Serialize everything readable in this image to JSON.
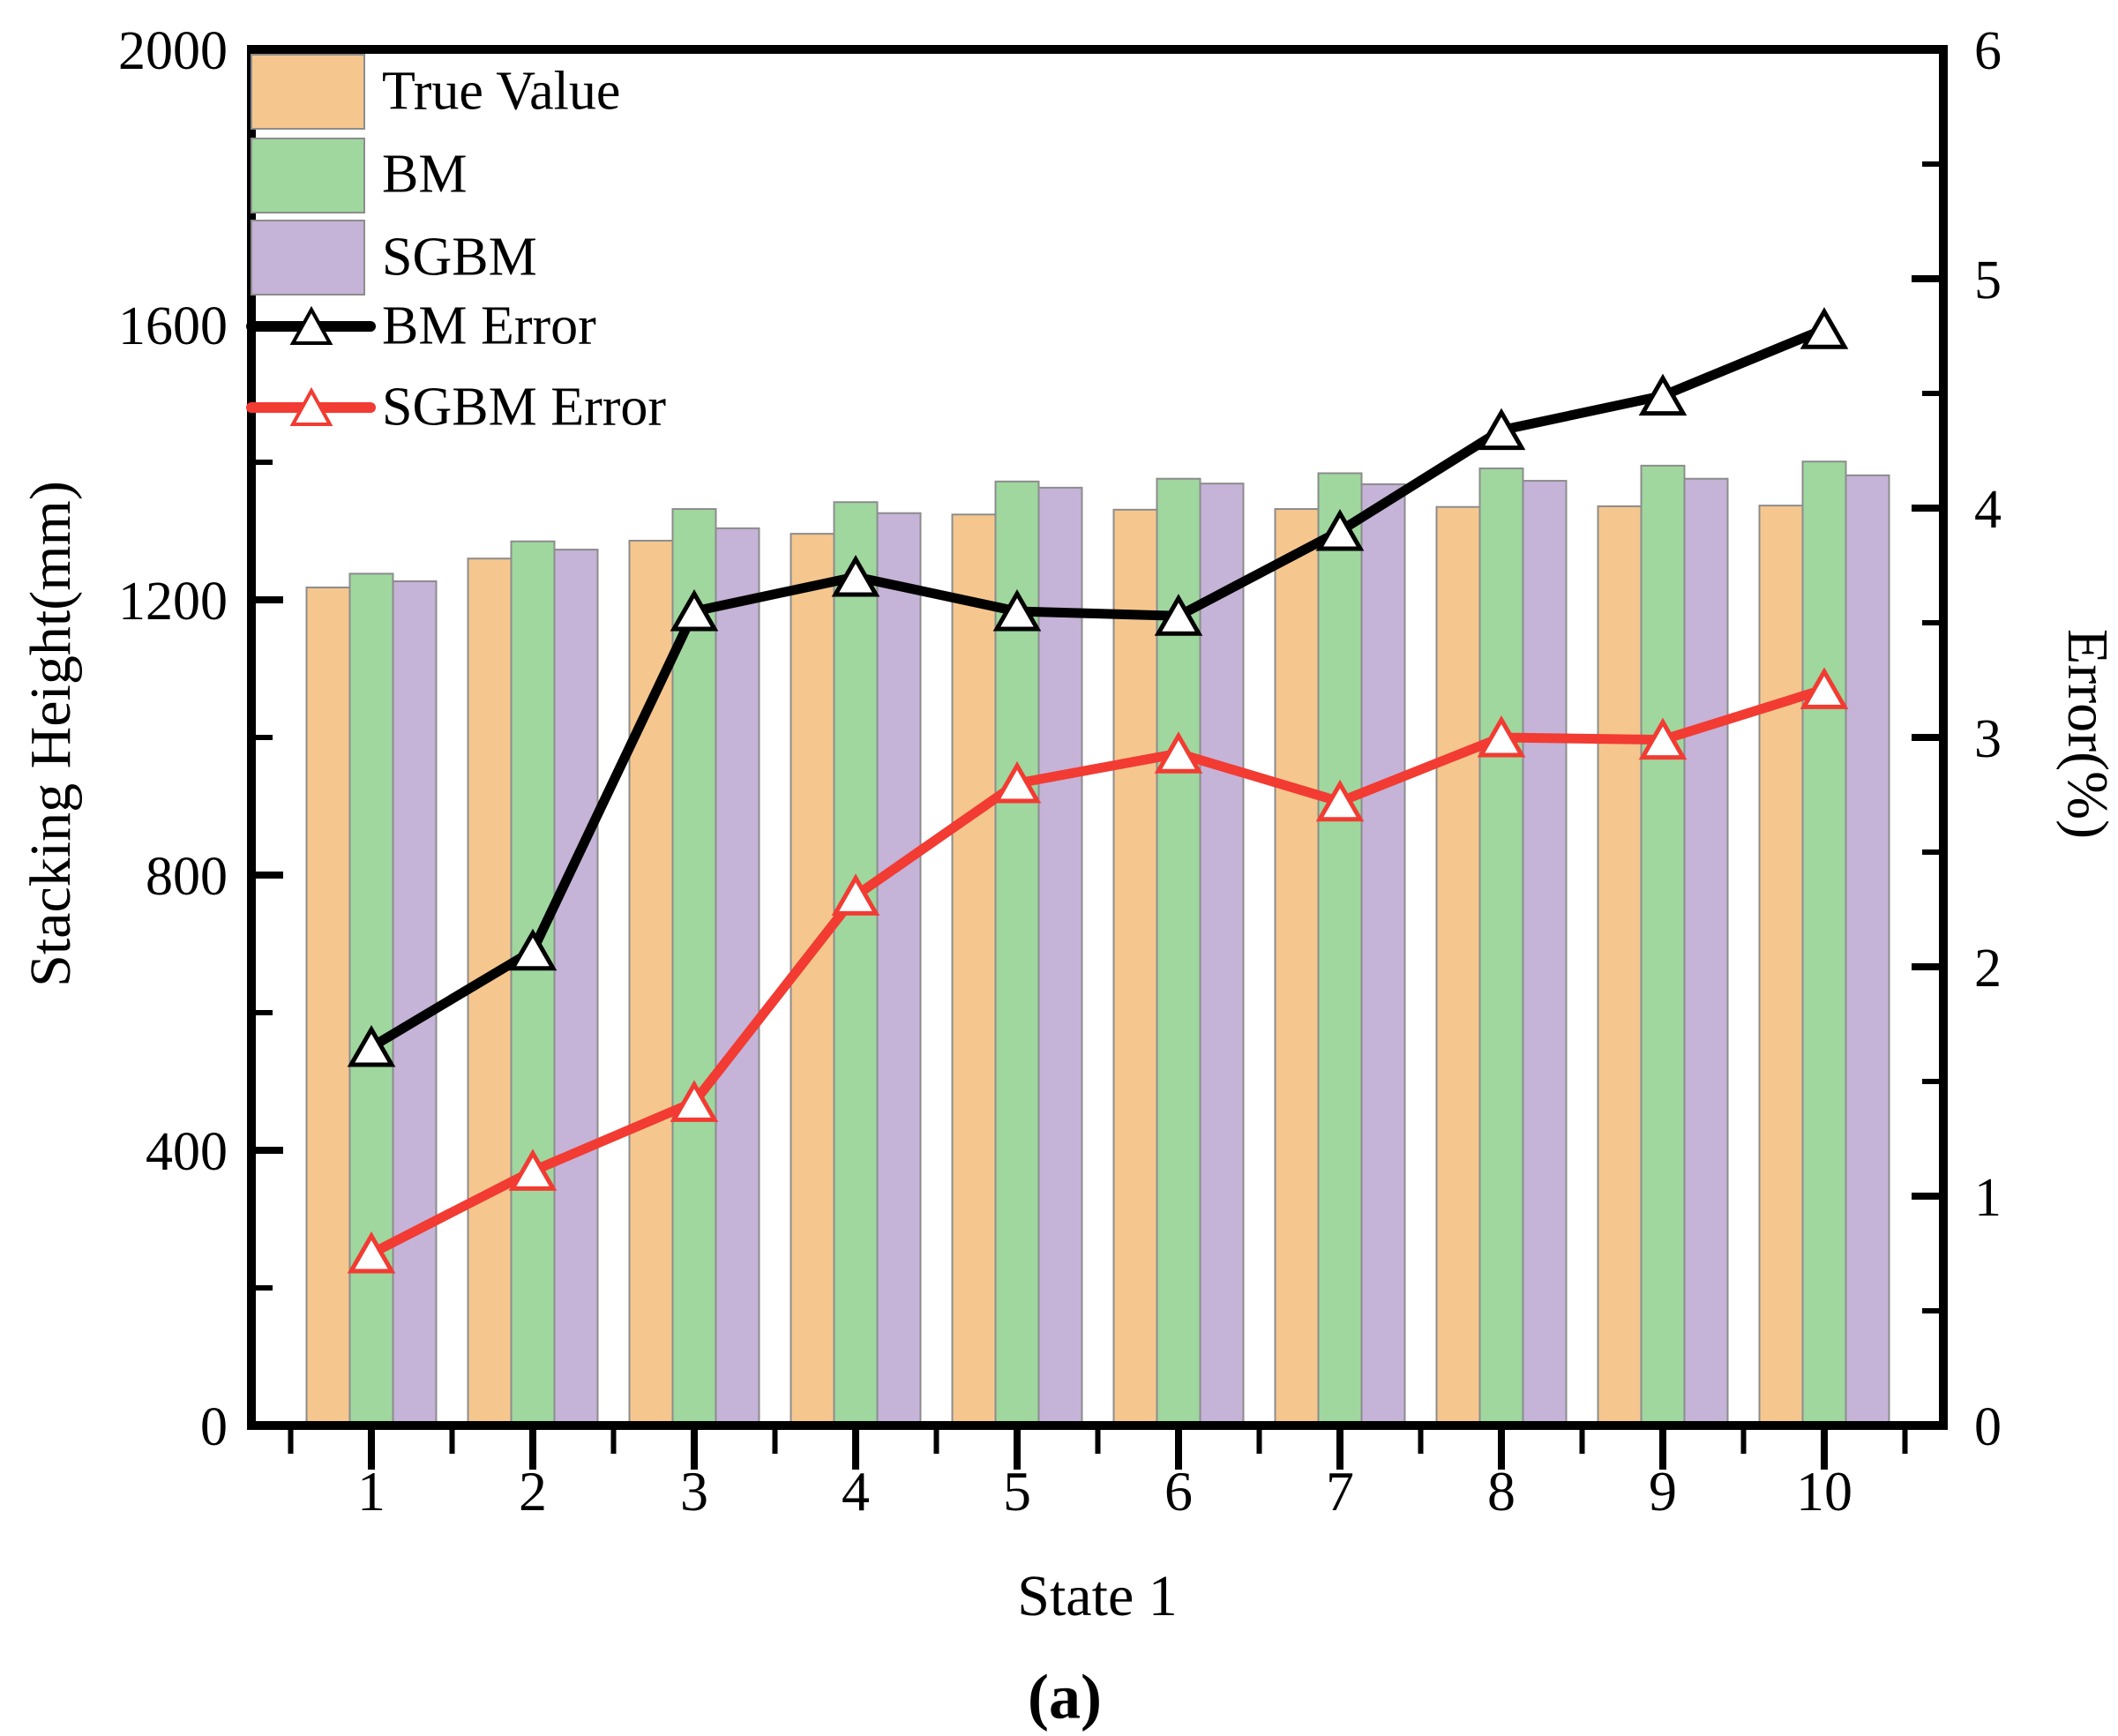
{
  "figure": {
    "panel_label": "(a)"
  },
  "colors": {
    "true_value_bar": "#F5C78E",
    "bm_bar": "#9FD79F",
    "sgbm_bar": "#C5B3D8",
    "bar_edge": "#8C8C8C",
    "bm_error_line": "#000000",
    "sgbm_error_line": "#F23B32",
    "marker_fill": "#FFFFFF",
    "axis": "#000000"
  },
  "legend": {
    "entries": [
      {
        "label": "True Value",
        "type": "swatch",
        "color_key": "true_value_bar"
      },
      {
        "label": "BM",
        "type": "swatch",
        "color_key": "bm_bar"
      },
      {
        "label": "SGBM",
        "type": "swatch",
        "color_key": "sgbm_bar"
      },
      {
        "label": "BM Error",
        "type": "line",
        "color_key": "bm_error_line"
      },
      {
        "label": "SGBM Error",
        "type": "line",
        "color_key": "sgbm_error_line"
      }
    ]
  },
  "chart_data": {
    "type": "bar+line combo",
    "categories": [
      1,
      2,
      3,
      4,
      5,
      6,
      7,
      8,
      9,
      10
    ],
    "xlabel": "State 1",
    "left_axis": {
      "label": "Stacking Height(mm)",
      "range": [
        0,
        2000
      ],
      "major_ticks": [
        0,
        400,
        800,
        1200,
        1600,
        2000
      ],
      "minor_ticks": [
        200,
        600,
        1000,
        1400,
        1800
      ],
      "grid": false
    },
    "right_axis": {
      "label": "Error(%)",
      "range": [
        0,
        6
      ],
      "major_ticks": [
        0,
        1,
        2,
        3,
        4,
        5,
        6
      ],
      "minor_ticks": [
        0.5,
        1.5,
        2.5,
        3.5,
        4.5,
        5.5
      ],
      "grid": false
    },
    "bar_series": [
      {
        "name": "True Value",
        "axis": "left",
        "color_key": "true_value_bar",
        "values": [
          1218,
          1260,
          1286,
          1296,
          1324,
          1331,
          1332,
          1335,
          1336,
          1337
        ]
      },
      {
        "name": "BM",
        "axis": "left",
        "color_key": "bm_bar",
        "values": [
          1238,
          1285,
          1332,
          1342,
          1372,
          1376,
          1384,
          1391,
          1395,
          1401
        ]
      },
      {
        "name": "SGBM",
        "axis": "left",
        "color_key": "sgbm_bar",
        "values": [
          1227,
          1273,
          1304,
          1326,
          1363,
          1369,
          1368,
          1373,
          1376,
          1381
        ]
      }
    ],
    "line_series": [
      {
        "name": "BM Error",
        "axis": "right",
        "color_key": "bm_error_line",
        "marker": "triangle-up",
        "values": [
          1.65,
          2.07,
          3.55,
          3.7,
          3.55,
          3.53,
          3.9,
          4.34,
          4.49,
          4.78
        ]
      },
      {
        "name": "SGBM Error",
        "axis": "right",
        "color_key": "sgbm_error_line",
        "marker": "triangle-up",
        "values": [
          0.75,
          1.11,
          1.41,
          2.31,
          2.8,
          2.93,
          2.72,
          3.0,
          2.99,
          3.21
        ]
      }
    ],
    "legend_position": "top-left-inside"
  }
}
